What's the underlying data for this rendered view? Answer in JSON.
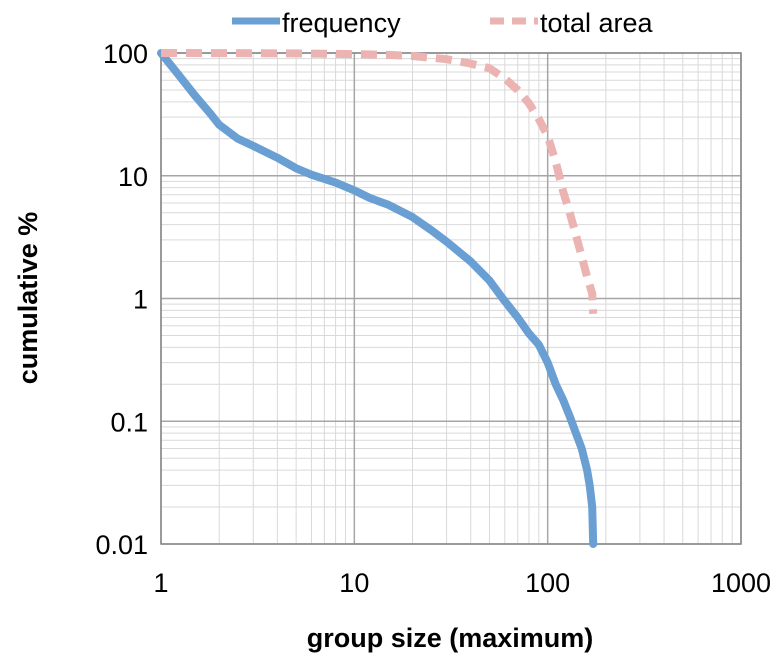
{
  "chart_data": {
    "type": "line",
    "title": "",
    "xlabel": "group size (maximum)",
    "ylabel": "cumulative %",
    "x_scale": "log",
    "y_scale": "log",
    "xlim": [
      1,
      1000
    ],
    "ylim": [
      0.01,
      100
    ],
    "x_ticks": [
      "1",
      "10",
      "100",
      "1000"
    ],
    "y_ticks": [
      "0.01",
      "0.1",
      "1",
      "10",
      "100"
    ],
    "grid": true,
    "legend": "top",
    "series": [
      {
        "name": "frequency",
        "color": "#6A9FD4",
        "style": "solid",
        "x": [
          1,
          1.2,
          1.5,
          1.8,
          2,
          2.5,
          3,
          4,
          5,
          6,
          8,
          10,
          12,
          15,
          20,
          25,
          30,
          40,
          50,
          60,
          70,
          80,
          90,
          100,
          110,
          120,
          130,
          140,
          150,
          160,
          165,
          170,
          172
        ],
        "y": [
          100,
          70,
          45,
          32,
          26,
          20,
          17.5,
          14,
          11.5,
          10.2,
          8.8,
          7.6,
          6.6,
          5.8,
          4.6,
          3.6,
          2.9,
          2.0,
          1.4,
          0.95,
          0.7,
          0.52,
          0.42,
          0.3,
          0.2,
          0.15,
          0.11,
          0.08,
          0.06,
          0.04,
          0.03,
          0.02,
          0.01
        ]
      },
      {
        "name": "total area",
        "color": "#EBB3B1",
        "style": "dashed",
        "x": [
          1,
          2,
          5,
          10,
          15,
          20,
          30,
          40,
          50,
          60,
          70,
          80,
          90,
          100,
          110,
          120,
          130,
          140,
          150,
          160,
          170,
          172
        ],
        "y": [
          100,
          99.8,
          99.3,
          98,
          96.5,
          94.5,
          89,
          82,
          75,
          62,
          50,
          39,
          29,
          21,
          13,
          7.5,
          5,
          3.3,
          2.2,
          1.5,
          1.1,
          0.75
        ]
      }
    ]
  }
}
